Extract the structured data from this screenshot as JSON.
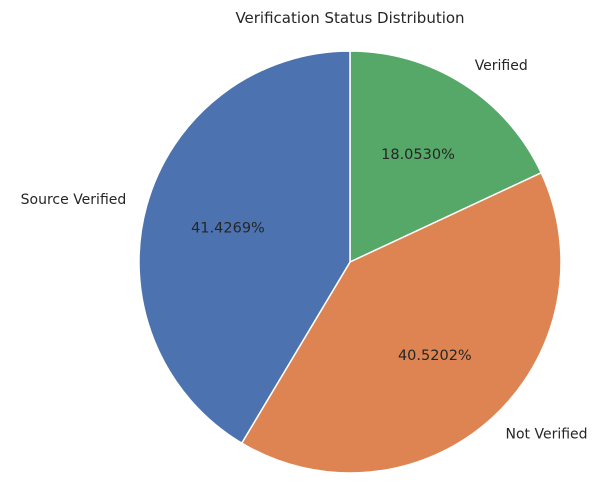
{
  "chart_data": {
    "type": "pie",
    "title": "Verification Status Distribution",
    "slices": [
      {
        "label": "Verified",
        "value": 18.053,
        "pct_label": "18.0530%",
        "color": "#55a868"
      },
      {
        "label": "Not Verified",
        "value": 40.5202,
        "pct_label": "40.5202%",
        "color": "#dd8452"
      },
      {
        "label": "Source Verified",
        "value": 41.4269,
        "pct_label": "41.4269%",
        "color": "#4c72b0"
      }
    ],
    "start_angle": 90,
    "direction": "clockwise",
    "legend": "none"
  }
}
